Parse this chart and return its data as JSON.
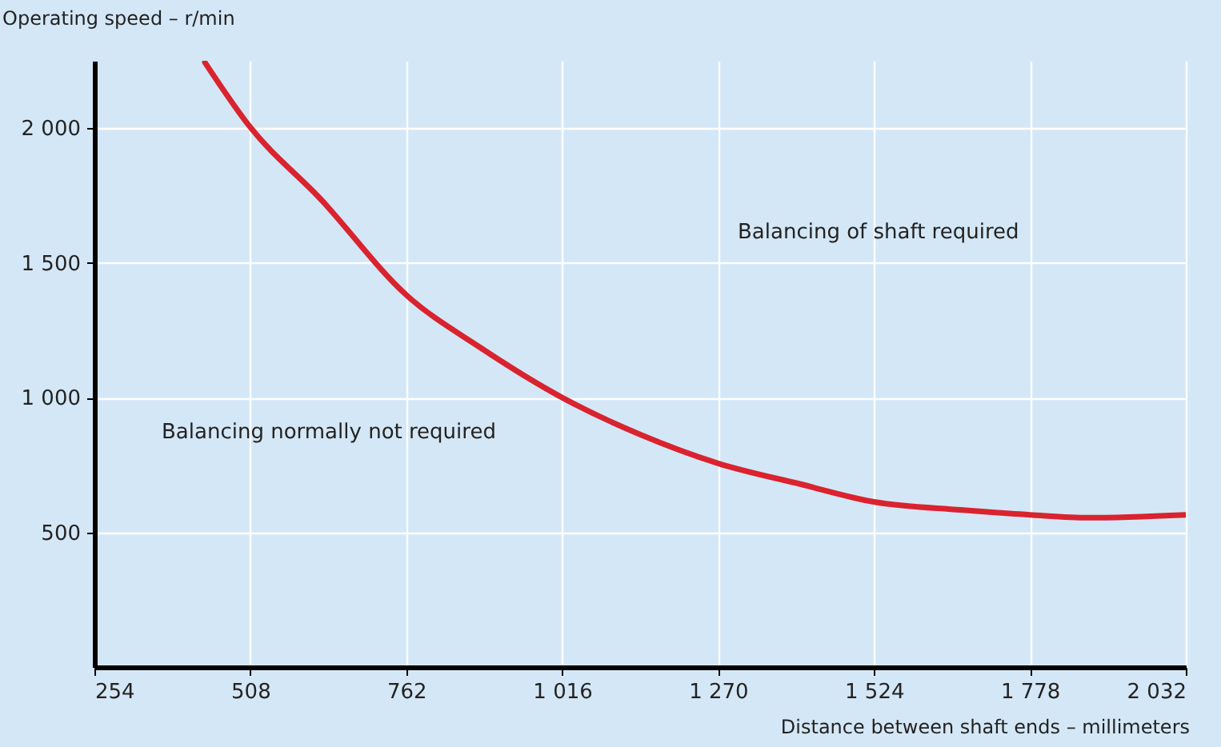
{
  "chart_data": {
    "type": "line",
    "xlabel": "Distance between shaft ends – millimeters",
    "ylabel": "Operating speed – r/min",
    "x": [
      434,
      507,
      622,
      762,
      883,
      1016,
      1143,
      1270,
      1404,
      1524,
      1665,
      1778,
      1873,
      2032
    ],
    "series": [
      {
        "color": "#d9232e",
        "values": [
          2244,
          2006,
          1738,
          1381,
          1185,
          1000,
          863,
          756,
          679,
          613,
          583,
          565,
          554,
          565
        ]
      }
    ],
    "xlim": [
      254,
      2032
    ],
    "ylim": [
      0,
      2250
    ],
    "xticks": [
      254,
      508,
      762,
      {
        "value": 1016,
        "label": "1 016"
      },
      {
        "value": 1270,
        "label": "1 270"
      },
      {
        "value": 1524,
        "label": "1 524"
      },
      {
        "value": 1778,
        "label": "1 778"
      },
      {
        "value": 2032,
        "label": "2 032"
      }
    ],
    "yticks": [
      500,
      {
        "value": 1000,
        "label": "1 000"
      },
      {
        "value": 1500,
        "label": "1 500"
      },
      {
        "value": 2000,
        "label": "2 000"
      }
    ],
    "annotations": [
      "Balancing of shaft required",
      "Balancing normally not required"
    ],
    "grid": true,
    "marker": "none",
    "line_style": "solid"
  }
}
